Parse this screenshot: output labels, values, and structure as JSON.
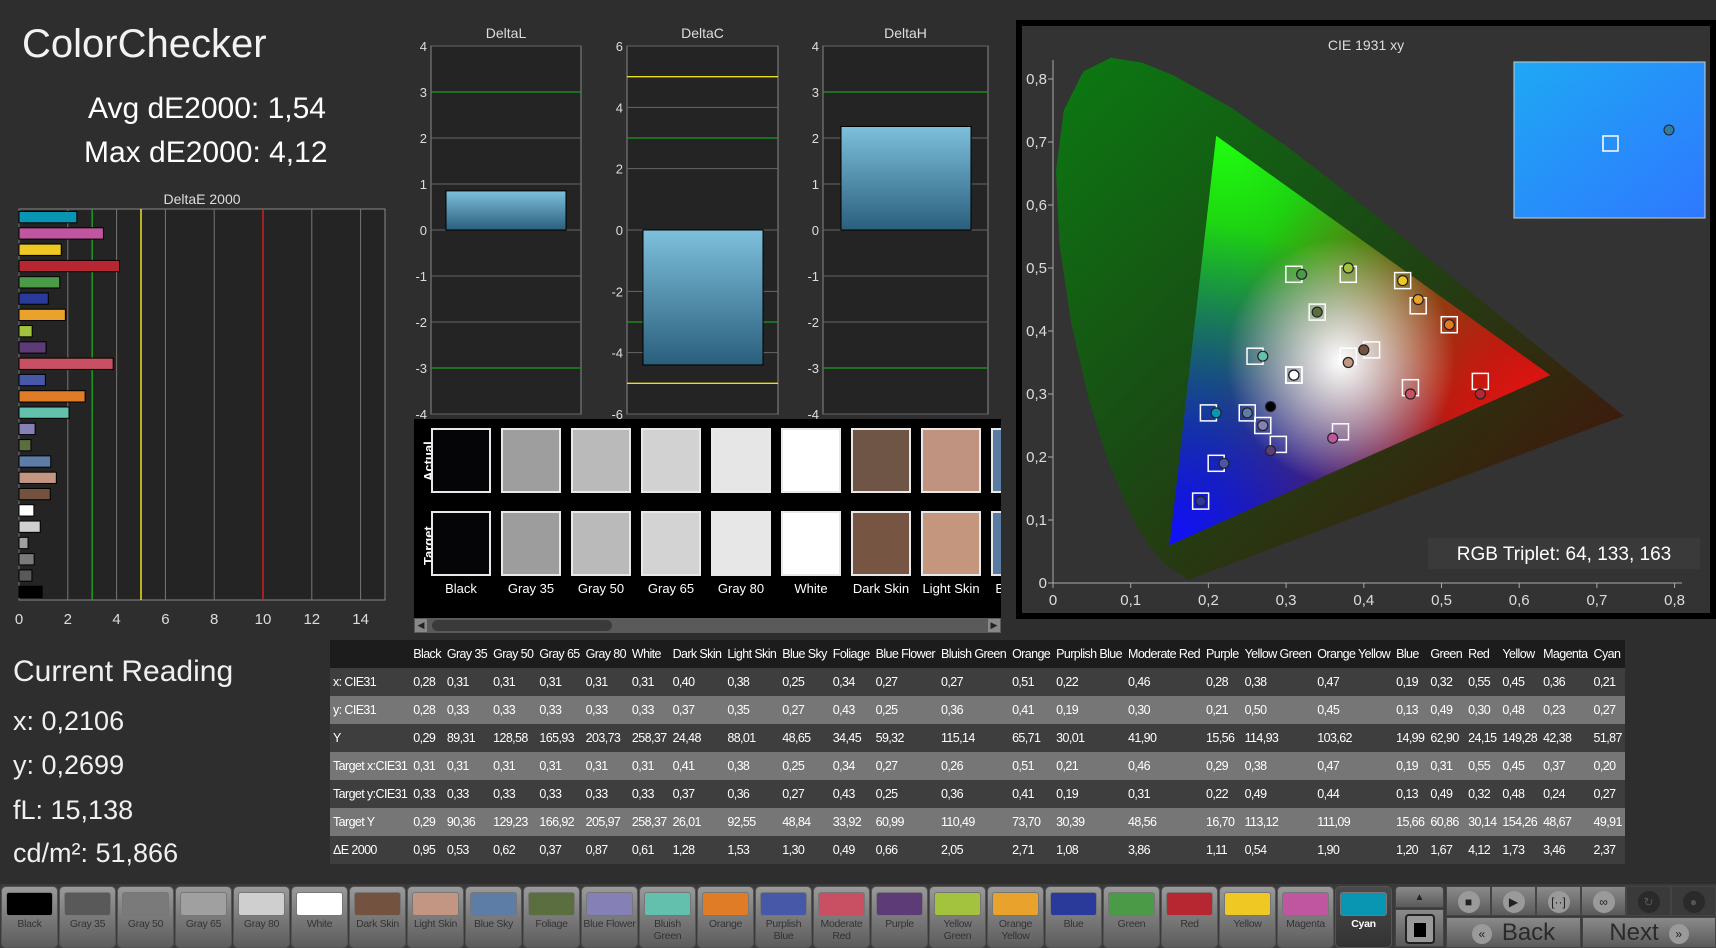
{
  "header": {
    "title": "ColorChecker",
    "avg": "Avg dE2000: 1,54",
    "max": "Max dE2000: 4,12"
  },
  "reading": {
    "title": "Current Reading",
    "x": "x: 0,2106",
    "y": "y: 0,2699",
    "fl": "fL: 15,138",
    "cd": "cd/m²: 51,866"
  },
  "swatch_panel": {
    "actual_label": "Actual",
    "target_label": "Target",
    "items": [
      {
        "name": "Black",
        "actual": "#050508",
        "target": "#050508"
      },
      {
        "name": "Gray 35",
        "actual": "#9e9e9e",
        "target": "#9d9d9d"
      },
      {
        "name": "Gray 50",
        "actual": "#bababa",
        "target": "#bababa"
      },
      {
        "name": "Gray 65",
        "actual": "#d2d2d2",
        "target": "#d3d3d3"
      },
      {
        "name": "Gray 80",
        "actual": "#e6e6e7",
        "target": "#e7e7e7"
      },
      {
        "name": "White",
        "actual": "#ffffff",
        "target": "#ffffff"
      },
      {
        "name": "Dark Skin",
        "actual": "#6f5545",
        "target": "#765643"
      },
      {
        "name": "Light Skin",
        "actual": "#c09380",
        "target": "#c5967e"
      },
      {
        "name": "Blue Sky",
        "actual": "#5a7ca3",
        "target": "#5a7ca3"
      }
    ]
  },
  "cie": {
    "title": "CIE 1931 xy",
    "rgb_triplet": "RGB Triplet: 64, 133, 163",
    "xticks": [
      "0",
      "0,1",
      "0,2",
      "0,3",
      "0,4",
      "0,5",
      "0,6",
      "0,7",
      "0,8"
    ],
    "yticks": [
      "0",
      "0,1",
      "0,2",
      "0,3",
      "0,4",
      "0,5",
      "0,6",
      "0,7",
      "0,8"
    ],
    "gamut": {
      "red": [
        0.64,
        0.33
      ],
      "green": [
        0.21,
        0.71
      ],
      "blue": [
        0.15,
        0.06
      ]
    }
  },
  "table": {
    "row_labels": [
      "x: CIE31",
      "y: CIE31",
      "Y",
      "Target x:CIE31",
      "Target y:CIE31",
      "Target Y",
      "ΔE 2000"
    ],
    "columns": [
      "Black",
      "Gray 35",
      "Gray 50",
      "Gray 65",
      "Gray 80",
      "White",
      "Dark Skin",
      "Light Skin",
      "Blue Sky",
      "Foliage",
      "Blue Flower",
      "Bluish Green",
      "Orange",
      "Purplish Blue",
      "Moderate Red",
      "Purple",
      "Yellow Green",
      "Orange Yellow",
      "Blue",
      "Green",
      "Red",
      "Yellow",
      "Magenta",
      "Cyan"
    ],
    "rows": [
      [
        "0,28",
        "0,31",
        "0,31",
        "0,31",
        "0,31",
        "0,31",
        "0,40",
        "0,38",
        "0,25",
        "0,34",
        "0,27",
        "0,27",
        "0,51",
        "0,22",
        "0,46",
        "0,28",
        "0,38",
        "0,47",
        "0,19",
        "0,32",
        "0,55",
        "0,45",
        "0,36",
        "0,21"
      ],
      [
        "0,28",
        "0,33",
        "0,33",
        "0,33",
        "0,33",
        "0,33",
        "0,37",
        "0,35",
        "0,27",
        "0,43",
        "0,25",
        "0,36",
        "0,41",
        "0,19",
        "0,30",
        "0,21",
        "0,50",
        "0,45",
        "0,13",
        "0,49",
        "0,30",
        "0,48",
        "0,23",
        "0,27"
      ],
      [
        "0,29",
        "89,31",
        "128,58",
        "165,93",
        "203,73",
        "258,37",
        "24,48",
        "88,01",
        "48,65",
        "34,45",
        "59,32",
        "115,14",
        "65,71",
        "30,01",
        "41,90",
        "15,56",
        "114,93",
        "103,62",
        "14,99",
        "62,90",
        "24,15",
        "149,28",
        "42,38",
        "51,87"
      ],
      [
        "0,31",
        "0,31",
        "0,31",
        "0,31",
        "0,31",
        "0,31",
        "0,41",
        "0,38",
        "0,25",
        "0,34",
        "0,27",
        "0,26",
        "0,51",
        "0,21",
        "0,46",
        "0,29",
        "0,38",
        "0,47",
        "0,19",
        "0,31",
        "0,55",
        "0,45",
        "0,37",
        "0,20"
      ],
      [
        "0,33",
        "0,33",
        "0,33",
        "0,33",
        "0,33",
        "0,33",
        "0,37",
        "0,36",
        "0,27",
        "0,43",
        "0,25",
        "0,36",
        "0,41",
        "0,19",
        "0,31",
        "0,22",
        "0,49",
        "0,44",
        "0,13",
        "0,49",
        "0,32",
        "0,48",
        "0,24",
        "0,27"
      ],
      [
        "0,29",
        "90,36",
        "129,23",
        "166,92",
        "205,97",
        "258,37",
        "26,01",
        "92,55",
        "48,84",
        "33,92",
        "60,99",
        "110,49",
        "73,70",
        "30,39",
        "48,56",
        "16,70",
        "113,12",
        "111,09",
        "15,66",
        "60,86",
        "30,14",
        "154,26",
        "48,67",
        "49,91"
      ],
      [
        "0,95",
        "0,53",
        "0,62",
        "0,37",
        "0,87",
        "0,61",
        "1,28",
        "1,53",
        "1,30",
        "0,49",
        "0,66",
        "2,05",
        "2,71",
        "1,08",
        "3,86",
        "1,11",
        "0,54",
        "1,90",
        "1,20",
        "1,67",
        "4,12",
        "1,73",
        "3,46",
        "2,37"
      ]
    ]
  },
  "patch_buttons": [
    {
      "label": "Black",
      "color": "#000000"
    },
    {
      "label": "Gray 35",
      "color": "#595959"
    },
    {
      "label": "Gray 50",
      "color": "#7a7a7a"
    },
    {
      "label": "Gray 65",
      "color": "#a0a0a0"
    },
    {
      "label": "Gray 80",
      "color": "#cfcfcf"
    },
    {
      "label": "White",
      "color": "#ffffff"
    },
    {
      "label": "Dark Skin",
      "color": "#73523f"
    },
    {
      "label": "Light Skin",
      "color": "#c39683"
    },
    {
      "label": "Blue Sky",
      "color": "#5d7da6"
    },
    {
      "label": "Foliage",
      "color": "#5a6e3f"
    },
    {
      "label": "Blue Flower",
      "color": "#8580b5"
    },
    {
      "label": "Bluish Green",
      "color": "#62c0ac"
    },
    {
      "label": "Orange",
      "color": "#e07b26"
    },
    {
      "label": "Purplish Blue",
      "color": "#4858a8"
    },
    {
      "label": "Moderate Red",
      "color": "#c85062"
    },
    {
      "label": "Purple",
      "color": "#5c3b77"
    },
    {
      "label": "Yellow Green",
      "color": "#a3c23d"
    },
    {
      "label": "Orange Yellow",
      "color": "#e9a22b"
    },
    {
      "label": "Blue",
      "color": "#293a9a"
    },
    {
      "label": "Green",
      "color": "#4a9a48"
    },
    {
      "label": "Red",
      "color": "#b62732"
    },
    {
      "label": "Yellow",
      "color": "#f0c823"
    },
    {
      "label": "Magenta",
      "color": "#c055a0"
    },
    {
      "label": "Cyan",
      "color": "#0896b3",
      "selected": true
    }
  ],
  "nav": {
    "back": "Back",
    "next": "Next",
    "icons": [
      "stop-icon",
      "play-icon",
      "fit-icon",
      "loop-icon",
      "refresh-icon",
      "record-icon"
    ]
  },
  "chart_data": [
    {
      "type": "bar",
      "title": "DeltaE 2000",
      "orientation": "horizontal",
      "categories": [
        "Black",
        "Gray 35",
        "Gray 50",
        "Gray 65",
        "Gray 80",
        "White",
        "Dark Skin",
        "Light Skin",
        "Blue Sky",
        "Foliage",
        "Blue Flower",
        "Bluish Green",
        "Orange",
        "Purplish Blue",
        "Moderate Red",
        "Purple",
        "Yellow Green",
        "Orange Yellow",
        "Blue",
        "Green",
        "Red",
        "Yellow",
        "Magenta",
        "Cyan"
      ],
      "values": [
        0.95,
        0.53,
        0.62,
        0.37,
        0.87,
        0.61,
        1.28,
        1.53,
        1.3,
        0.49,
        0.66,
        2.05,
        2.71,
        1.08,
        3.86,
        1.11,
        0.54,
        1.9,
        1.2,
        1.67,
        4.12,
        1.73,
        3.46,
        2.37
      ],
      "xlim": [
        0,
        15
      ],
      "xticks": [
        "0",
        "2",
        "4",
        "6",
        "8",
        "10",
        "12",
        "14"
      ],
      "reference_lines": [
        {
          "value": 3,
          "color": "#1f9a1f"
        },
        {
          "value": 5,
          "color": "#f0e020"
        },
        {
          "value": 10,
          "color": "#d02020"
        }
      ],
      "grid": true
    },
    {
      "type": "bar",
      "title": "DeltaL",
      "values": [
        0.85
      ],
      "ylim": [
        -4,
        4
      ],
      "yticks": [
        "4",
        "3",
        "2",
        "1",
        "0",
        "-1",
        "-2",
        "-3",
        "-4"
      ],
      "reference_lines": [
        {
          "value": 3,
          "color": "#1f9a1f"
        },
        {
          "value": -3,
          "color": "#1f9a1f"
        }
      ]
    },
    {
      "type": "bar",
      "title": "DeltaC",
      "values": [
        -4.4
      ],
      "ylim": [
        -6,
        6
      ],
      "yticks": [
        "6",
        "4",
        "2",
        "0",
        "-2",
        "-4",
        "-6"
      ],
      "reference_lines": [
        {
          "value": 3,
          "color": "#1f9a1f"
        },
        {
          "value": -3,
          "color": "#1f9a1f"
        },
        {
          "value": 5,
          "color": "#e8e020"
        },
        {
          "value": -5,
          "color": "#e8e020"
        }
      ]
    },
    {
      "type": "bar",
      "title": "DeltaH",
      "values": [
        2.25
      ],
      "ylim": [
        -4,
        4
      ],
      "yticks": [
        "4",
        "3",
        "2",
        "1",
        "0",
        "-1",
        "-2",
        "-3",
        "-4"
      ],
      "reference_lines": [
        {
          "value": 3,
          "color": "#1f9a1f"
        },
        {
          "value": -3,
          "color": "#1f9a1f"
        }
      ]
    }
  ]
}
